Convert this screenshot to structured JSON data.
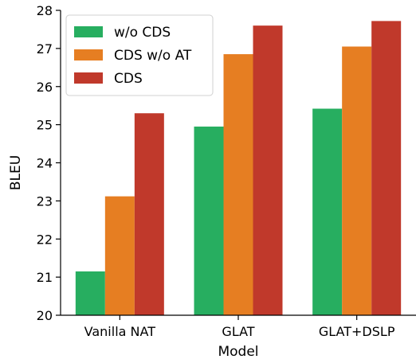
{
  "chart_data": {
    "type": "bar",
    "title": "",
    "xlabel": "Model",
    "ylabel": "BLEU",
    "categories": [
      "Vanilla NAT",
      "GLAT",
      "GLAT+DSLP"
    ],
    "series": [
      {
        "name": "w/o CDS",
        "color": "#27ae60",
        "values": [
          21.15,
          24.95,
          25.42
        ]
      },
      {
        "name": "CDS w/o AT",
        "color": "#e67e22",
        "values": [
          23.12,
          26.85,
          27.05
        ]
      },
      {
        "name": "CDS",
        "color": "#c0392b",
        "values": [
          25.3,
          27.6,
          27.72
        ]
      }
    ],
    "ylim": [
      20,
      28
    ],
    "yticks": [
      20,
      21,
      22,
      23,
      24,
      25,
      26,
      27,
      28
    ],
    "grid": false,
    "legend_position": "top-left"
  }
}
